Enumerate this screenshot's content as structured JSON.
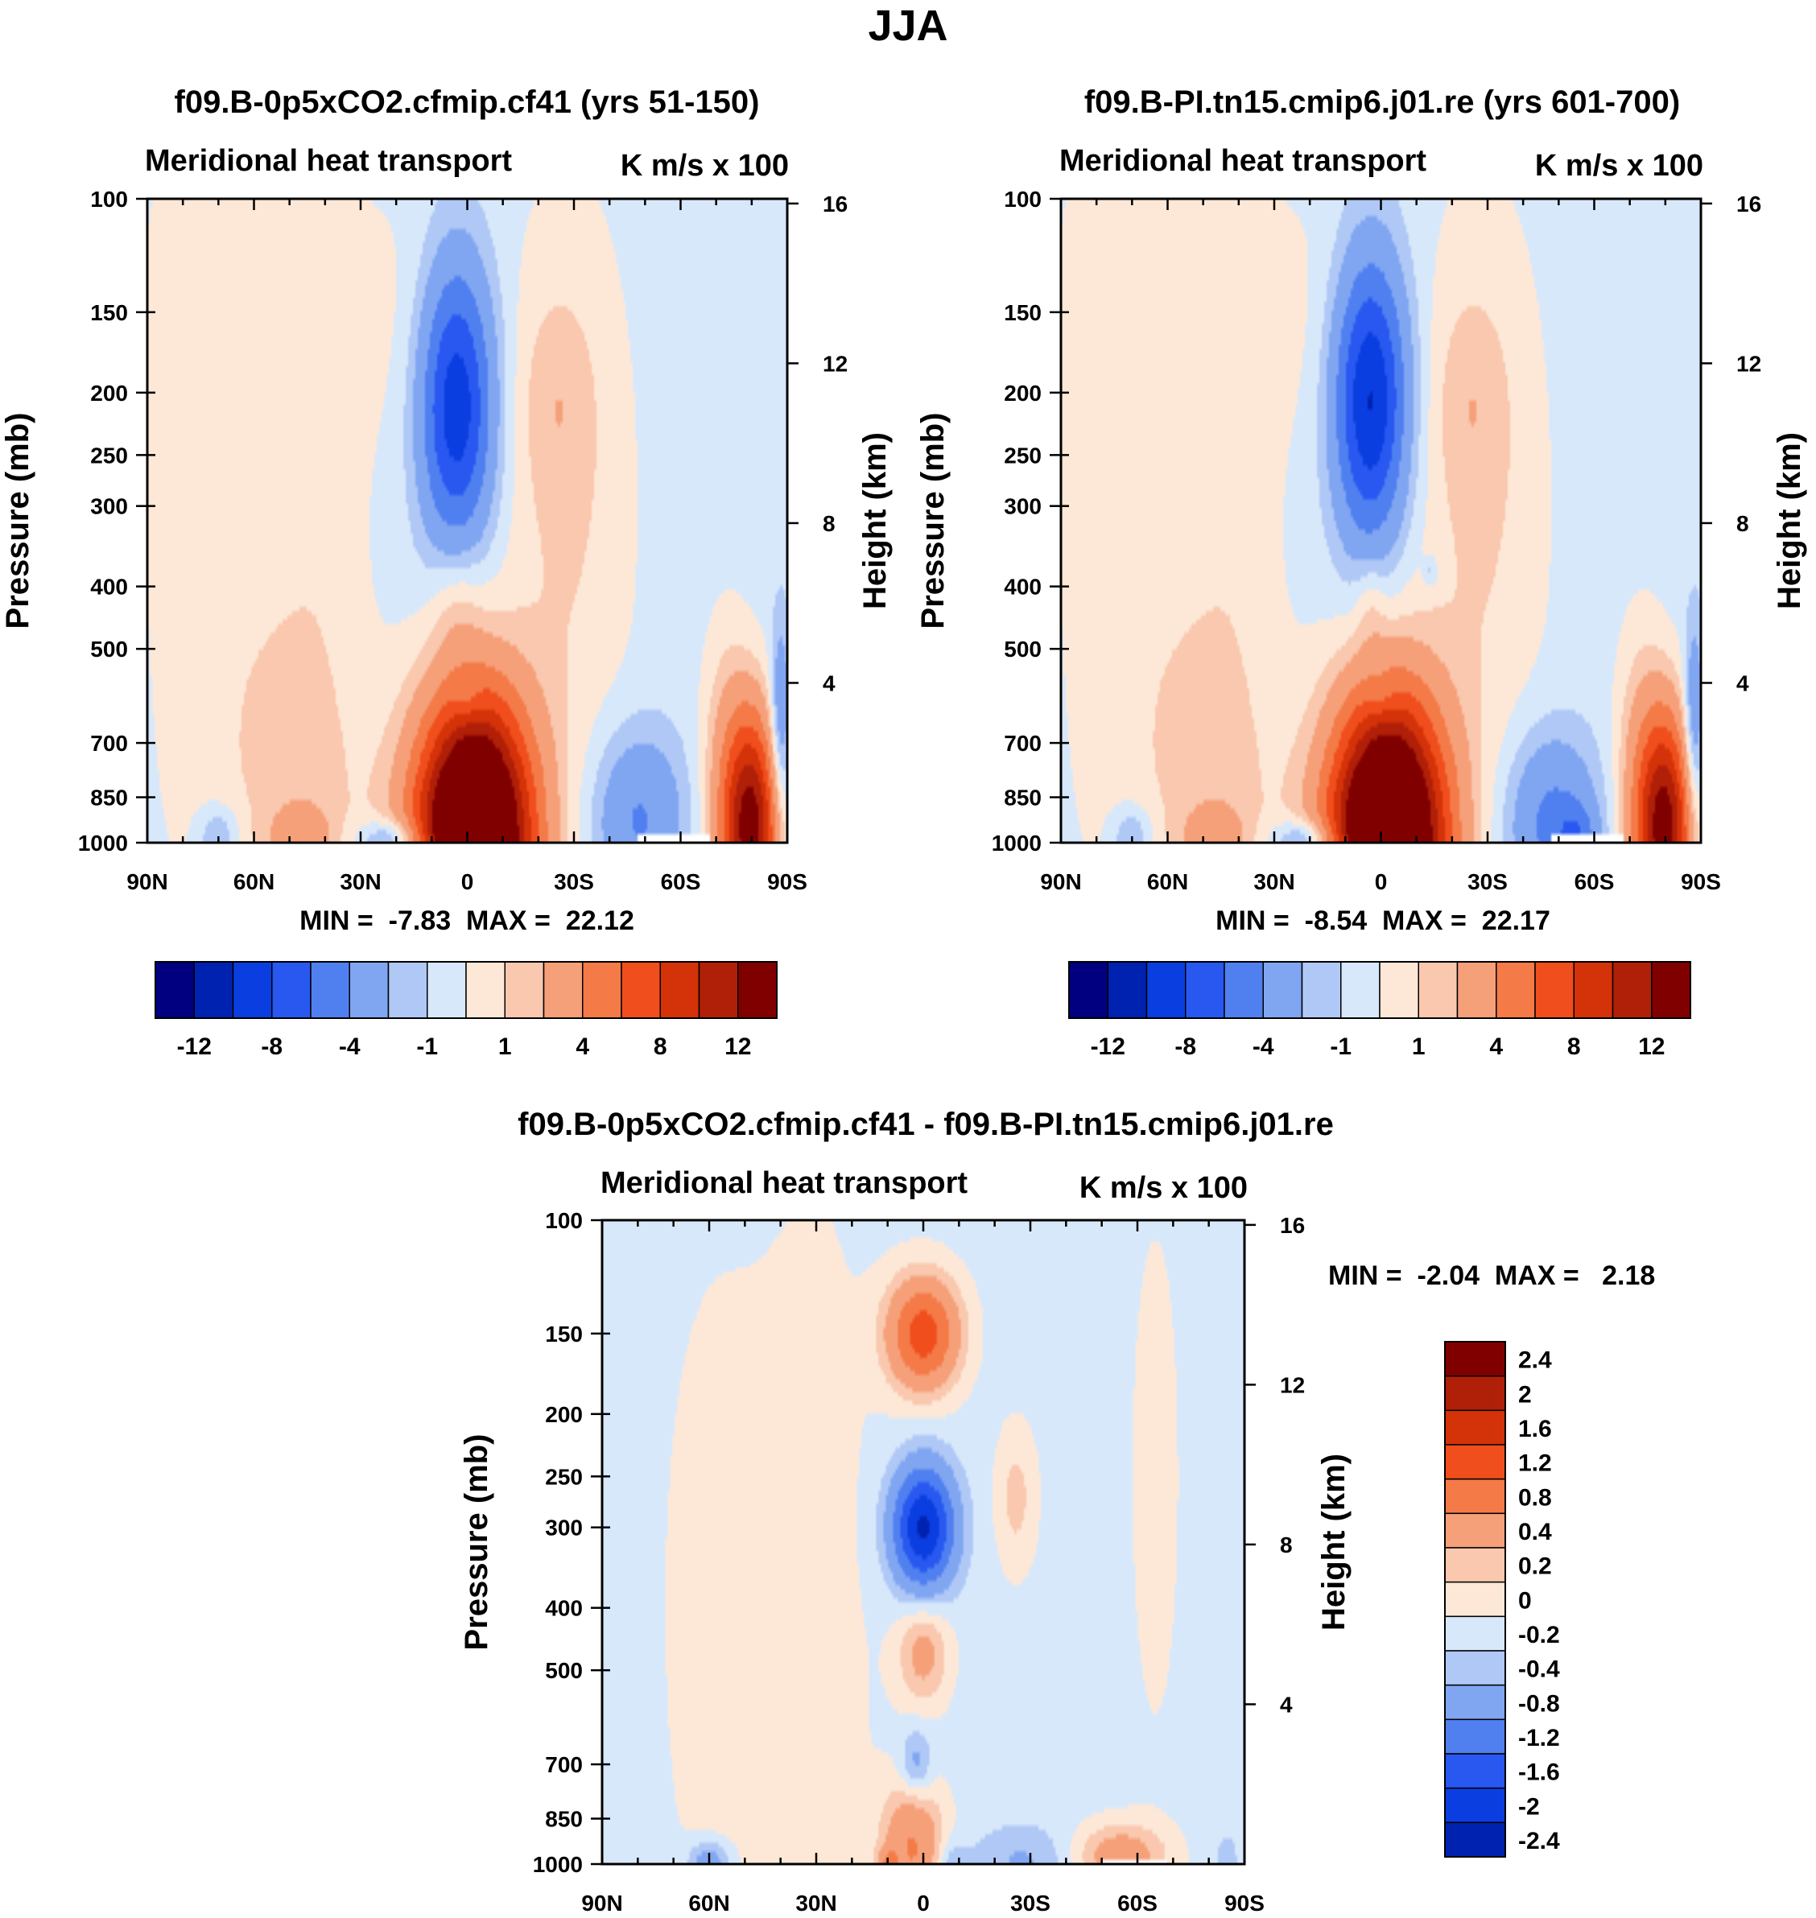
{
  "figure": {
    "title": "JJA",
    "panel_subtitle": "Meridional heat transport",
    "units": "K m/s x 100",
    "y_left_label": "Pressure (mb)",
    "y_right_label": "Height (km)",
    "palette": [
      "#000080",
      "#0022b0",
      "#0a3ee0",
      "#2858f0",
      "#5080f0",
      "#80a6f2",
      "#b0c8f6",
      "#d8e8fb",
      "#fde8d8",
      "#f9c8ae",
      "#f6a07a",
      "#f47a48",
      "#f04e1c",
      "#d43208",
      "#b01f08",
      "#800000"
    ],
    "nan_color": "#ffffff"
  },
  "chart_data": [
    {
      "id": "p1",
      "type": "heatmap",
      "title": "f09.B-0p5xCO2.cfmip.cf41 (yrs 51-150)",
      "subtitle": "Meridional heat transport",
      "units": "K m/s x 100",
      "xlabel": "",
      "ylabel": "Pressure (mb)",
      "ylabel_right": "Height (km)",
      "x_ticks": [
        "90N",
        "60N",
        "30N",
        "0",
        "30S",
        "60S",
        "90S"
      ],
      "x_tick_values": [
        90,
        60,
        30,
        0,
        -30,
        -60,
        -90
      ],
      "xlim": [
        90,
        -90
      ],
      "y_ticks": [
        "100",
        "150",
        "200",
        "250",
        "300",
        "400",
        "500",
        "700",
        "850",
        "1000"
      ],
      "y_tick_values": [
        100,
        150,
        200,
        250,
        300,
        400,
        500,
        700,
        850,
        1000
      ],
      "ylim": [
        1000,
        100
      ],
      "y_scale": "log",
      "height_ticks": [
        "16",
        "12",
        "8",
        "4"
      ],
      "height_values_km": [
        16,
        12,
        8,
        4
      ],
      "min_text": "MIN =  -7.83  MAX =  22.12",
      "min": -7.83,
      "max": 22.12,
      "levels": [
        -14,
        -12,
        -10,
        -8,
        -6,
        -4,
        -2,
        -1,
        0,
        1,
        2,
        4,
        6,
        8,
        10,
        12,
        14
      ],
      "colorbar_labels": [
        "-12",
        "-8",
        "-4",
        "-1",
        "1",
        "4",
        "8",
        "12"
      ],
      "colorbar_label_boundaries": [
        1,
        3,
        5,
        7,
        9,
        11,
        13,
        15
      ],
      "colorbar_orientation": "horizontal",
      "background_value": -0.5,
      "missing_region": {
        "lat_min": -68,
        "lat_max": -48,
        "p_min": 975
      },
      "features": [
        {
          "lat": 64,
          "p": 300,
          "dlat": 24,
          "dlogp": 1.2,
          "amp": 0.8
        },
        {
          "lat": 52,
          "p": 700,
          "dlat": 14,
          "dlogp": 0.5,
          "amp": 0.9
        },
        {
          "lat": 40,
          "p": 300,
          "dlat": 8,
          "dlogp": 0.9,
          "amp": 0.5
        },
        {
          "lat": 76,
          "p": 250,
          "dlat": 8,
          "dlogp": 0.9,
          "amp": 0.3
        },
        {
          "lat": 66,
          "p": 120,
          "dlat": 14,
          "dlogp": 0.3,
          "amp": 0.6
        },
        {
          "lat": 20,
          "p": 150,
          "dlat": 12,
          "dlogp": 0.35,
          "amp": 0.6
        },
        {
          "lat": -28,
          "p": 300,
          "dlat": 13,
          "dlogp": 0.8,
          "amp": 1.6
        },
        {
          "lat": -25,
          "p": 205,
          "dlat": 7,
          "dlogp": 0.25,
          "amp": 1.1
        },
        {
          "lat": 3,
          "p": 210,
          "dlat": 7,
          "dlogp": 0.35,
          "amp": -9.0
        },
        {
          "lat": 3,
          "p": 420,
          "dlat": 5,
          "dlogp": 0.17,
          "amp": 1.6
        },
        {
          "lat": 0,
          "p": 600,
          "dlat": 3,
          "dlogp": 0.06,
          "amp": -1.6
        },
        {
          "lat": -2,
          "p": 1000,
          "dlat": 11,
          "dlogp": 0.35,
          "amp": 23.0
        },
        {
          "lat": 35,
          "p": 900,
          "dlat": 22,
          "dlogp": 0.35,
          "amp": 0.6
        },
        {
          "lat": 47,
          "p": 1000,
          "dlat": 6,
          "dlogp": 0.09,
          "amp": 2.7
        },
        {
          "lat": 70,
          "p": 980,
          "dlat": 4,
          "dlogp": 0.08,
          "amp": -2.3
        },
        {
          "lat": 20,
          "p": 990,
          "dlat": 7,
          "dlogp": 0.05,
          "amp": -3.8
        },
        {
          "lat": -48,
          "p": 920,
          "dlat": 9,
          "dlogp": 0.22,
          "amp": -3.8
        },
        {
          "lat": -80,
          "p": 950,
          "dlat": 5,
          "dlogp": 0.28,
          "amp": 13.0
        },
        {
          "lat": -73,
          "p": 850,
          "dlat": 5,
          "dlogp": 0.38,
          "amp": 3.0
        },
        {
          "lat": -88,
          "p": 650,
          "dlat": 2,
          "dlogp": 0.25,
          "amp": -3.5
        }
      ]
    },
    {
      "id": "p2",
      "type": "heatmap",
      "title": "f09.B-PI.tn15.cmip6.j01.re (yrs 601-700)",
      "subtitle": "Meridional heat transport",
      "units": "K m/s x 100",
      "xlabel": "",
      "ylabel": "Pressure (mb)",
      "ylabel_right": "Height (km)",
      "x_ticks": [
        "90N",
        "60N",
        "30N",
        "0",
        "30S",
        "60S",
        "90S"
      ],
      "x_tick_values": [
        90,
        60,
        30,
        0,
        -30,
        -60,
        -90
      ],
      "xlim": [
        90,
        -90
      ],
      "y_ticks": [
        "100",
        "150",
        "200",
        "250",
        "300",
        "400",
        "500",
        "700",
        "850",
        "1000"
      ],
      "y_tick_values": [
        100,
        150,
        200,
        250,
        300,
        400,
        500,
        700,
        850,
        1000
      ],
      "ylim": [
        1000,
        100
      ],
      "y_scale": "log",
      "height_ticks": [
        "16",
        "12",
        "8",
        "4"
      ],
      "height_values_km": [
        16,
        12,
        8,
        4
      ],
      "min_text": "MIN =  -8.54  MAX =  22.17",
      "min": -8.54,
      "max": 22.17,
      "levels": [
        -14,
        -12,
        -10,
        -8,
        -6,
        -4,
        -2,
        -1,
        0,
        1,
        2,
        4,
        6,
        8,
        10,
        12,
        14
      ],
      "colorbar_labels": [
        "-12",
        "-8",
        "-4",
        "-1",
        "1",
        "4",
        "8",
        "12"
      ],
      "colorbar_label_boundaries": [
        1,
        3,
        5,
        7,
        9,
        11,
        13,
        15
      ],
      "colorbar_orientation": "horizontal",
      "background_value": -0.5,
      "missing_region": {
        "lat_min": -68,
        "lat_max": -48,
        "p_min": 975
      },
      "features": [
        {
          "lat": 64,
          "p": 300,
          "dlat": 24,
          "dlogp": 1.2,
          "amp": 0.8
        },
        {
          "lat": 52,
          "p": 700,
          "dlat": 14,
          "dlogp": 0.5,
          "amp": 0.9
        },
        {
          "lat": 40,
          "p": 300,
          "dlat": 8,
          "dlogp": 0.9,
          "amp": 0.5
        },
        {
          "lat": 76,
          "p": 250,
          "dlat": 8,
          "dlogp": 0.9,
          "amp": 0.3
        },
        {
          "lat": 66,
          "p": 120,
          "dlat": 14,
          "dlogp": 0.3,
          "amp": 0.6
        },
        {
          "lat": 20,
          "p": 150,
          "dlat": 12,
          "dlogp": 0.35,
          "amp": 0.6
        },
        {
          "lat": -28,
          "p": 300,
          "dlat": 13,
          "dlogp": 0.8,
          "amp": 1.6
        },
        {
          "lat": -25,
          "p": 205,
          "dlat": 7,
          "dlogp": 0.25,
          "amp": 1.1
        },
        {
          "lat": 3,
          "p": 205,
          "dlat": 7,
          "dlogp": 0.35,
          "amp": -9.8
        },
        {
          "lat": 3,
          "p": 420,
          "dlat": 3,
          "dlogp": 0.12,
          "amp": 1.2
        },
        {
          "lat": 0,
          "p": 590,
          "dlat": 3,
          "dlogp": 0.06,
          "amp": -1.6
        },
        {
          "lat": -14,
          "p": 380,
          "dlat": 1.5,
          "dlogp": 0.04,
          "amp": -1.6
        },
        {
          "lat": -2,
          "p": 1000,
          "dlat": 11,
          "dlogp": 0.35,
          "amp": 23.0
        },
        {
          "lat": 35,
          "p": 900,
          "dlat": 22,
          "dlogp": 0.35,
          "amp": 0.6
        },
        {
          "lat": 47,
          "p": 1000,
          "dlat": 6,
          "dlogp": 0.09,
          "amp": 2.7
        },
        {
          "lat": 70,
          "p": 980,
          "dlat": 4,
          "dlogp": 0.08,
          "amp": -2.3
        },
        {
          "lat": 20,
          "p": 990,
          "dlat": 7,
          "dlogp": 0.05,
          "amp": -3.8
        },
        {
          "lat": -48,
          "p": 930,
          "dlat": 9,
          "dlogp": 0.22,
          "amp": -4.2
        },
        {
          "lat": -55,
          "p": 980,
          "dlat": 4,
          "dlogp": 0.08,
          "amp": -3.0
        },
        {
          "lat": -80,
          "p": 950,
          "dlat": 5,
          "dlogp": 0.28,
          "amp": 13.0
        },
        {
          "lat": -73,
          "p": 850,
          "dlat": 5,
          "dlogp": 0.38,
          "amp": 3.0
        },
        {
          "lat": -88,
          "p": 650,
          "dlat": 2,
          "dlogp": 0.25,
          "amp": -3.5
        }
      ]
    },
    {
      "id": "p3",
      "type": "heatmap",
      "title": "f09.B-0p5xCO2.cfmip.cf41 - f09.B-PI.tn15.cmip6.j01.re",
      "subtitle": "Meridional heat transport",
      "units": "K m/s x 100",
      "xlabel": "",
      "ylabel": "Pressure (mb)",
      "ylabel_right": "Height (km)",
      "x_ticks": [
        "90N",
        "60N",
        "30N",
        "0",
        "30S",
        "60S",
        "90S"
      ],
      "x_tick_values": [
        90,
        60,
        30,
        0,
        -30,
        -60,
        -90
      ],
      "xlim": [
        90,
        -90
      ],
      "y_ticks": [
        "100",
        "150",
        "200",
        "250",
        "300",
        "400",
        "500",
        "700",
        "850",
        "1000"
      ],
      "y_tick_values": [
        100,
        150,
        200,
        250,
        300,
        400,
        500,
        700,
        850,
        1000
      ],
      "ylim": [
        1000,
        100
      ],
      "y_scale": "log",
      "height_ticks": [
        "16",
        "12",
        "8",
        "4"
      ],
      "height_values_km": [
        16,
        12,
        8,
        4
      ],
      "min_text": "MIN =  -2.04  MAX =   2.18",
      "min": -2.04,
      "max": 2.18,
      "levels": [
        -2.8,
        -2.4,
        -2.0,
        -1.6,
        -1.2,
        -0.8,
        -0.4,
        -0.2,
        0,
        0.2,
        0.4,
        0.8,
        1.2,
        1.6,
        2.0,
        2.4,
        2.8
      ],
      "colorbar_labels": [
        "2.4",
        "2",
        "1.6",
        "1.2",
        "0.8",
        "0.4",
        "0.2",
        "0",
        "-0.2",
        "-0.4",
        "-0.8",
        "-1.2",
        "-1.6",
        "-2",
        "-2.4"
      ],
      "colorbar_label_values": [
        2.4,
        2.0,
        1.6,
        1.2,
        0.8,
        0.4,
        0.2,
        0,
        -0.2,
        -0.4,
        -0.8,
        -1.2,
        -1.6,
        -2.0,
        -2.4
      ],
      "colorbar_orientation": "vertical",
      "background_value": -0.08,
      "missing_region": {
        "lat_min": -68,
        "lat_max": -50,
        "p_min": 985
      },
      "features": [
        {
          "lat": 58,
          "p": 380,
          "dlat": 12,
          "dlogp": 0.9,
          "amp": 0.16
        },
        {
          "lat": 30,
          "p": 250,
          "dlat": 12,
          "dlogp": 0.9,
          "amp": 0.14
        },
        {
          "lat": 36,
          "p": 720,
          "dlat": 14,
          "dlogp": 0.4,
          "amp": 0.12
        },
        {
          "lat": -65,
          "p": 250,
          "dlat": 6,
          "dlogp": 0.8,
          "amp": 0.14
        },
        {
          "lat": -26,
          "p": 270,
          "dlat": 4,
          "dlogp": 0.18,
          "amp": 0.35
        },
        {
          "lat": 0,
          "p": 150,
          "dlat": 7,
          "dlogp": 0.14,
          "amp": 1.5
        },
        {
          "lat": 0,
          "p": 300,
          "dlat": 6,
          "dlogp": 0.15,
          "amp": -2.0
        },
        {
          "lat": 0,
          "p": 470,
          "dlat": 5,
          "dlogp": 0.13,
          "amp": 0.6
        },
        {
          "lat": 2,
          "p": 700,
          "dlat": 3,
          "dlogp": 0.09,
          "amp": -0.5
        },
        {
          "lat": 3,
          "p": 940,
          "dlat": 6,
          "dlogp": 0.16,
          "amp": 0.9
        },
        {
          "lat": 10,
          "p": 1000,
          "dlat": 2,
          "dlogp": 0.04,
          "amp": 0.6
        },
        {
          "lat": -8,
          "p": 1000,
          "dlat": 3,
          "dlogp": 0.06,
          "amp": -0.35
        },
        {
          "lat": -28,
          "p": 990,
          "dlat": 10,
          "dlogp": 0.09,
          "amp": -0.35
        },
        {
          "lat": -55,
          "p": 970,
          "dlat": 9,
          "dlogp": 0.08,
          "amp": 0.7
        },
        {
          "lat": 60,
          "p": 990,
          "dlat": 4,
          "dlogp": 0.05,
          "amp": -0.6
        },
        {
          "lat": -85,
          "p": 920,
          "dlat": 3,
          "dlogp": 0.2,
          "amp": -0.3
        },
        {
          "lat": -85,
          "p": 800,
          "dlat": 3,
          "dlogp": 0.15,
          "amp": 0.25
        }
      ]
    }
  ]
}
